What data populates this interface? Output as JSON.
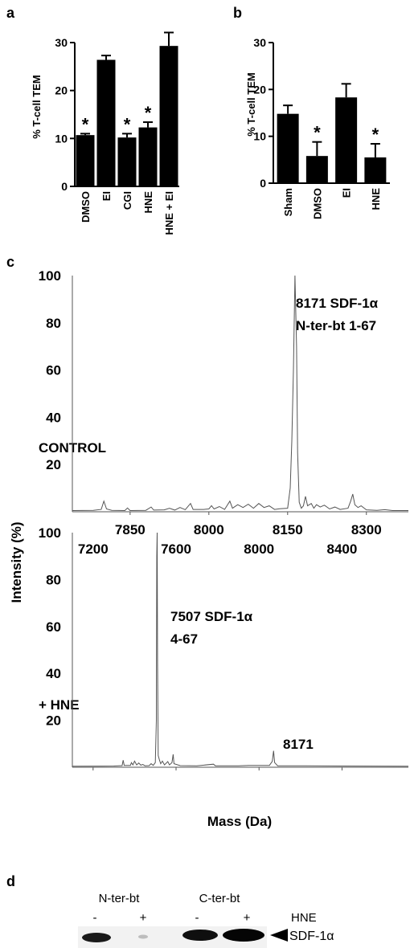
{
  "panel_labels": {
    "a": "a",
    "b": "b",
    "c": "c",
    "d": "d"
  },
  "chart_data": [
    {
      "panel": "a",
      "type": "bar",
      "ylabel": "% T-cell TEM",
      "ylim": [
        0,
        30
      ],
      "yticks": [
        0,
        10,
        20,
        30
      ],
      "categories": [
        "DMSO",
        "EI",
        "CGI",
        "HNE",
        "HNE + EI"
      ],
      "values": [
        10.7,
        26.4,
        10.2,
        12.3,
        29.3
      ],
      "errors": [
        0.3,
        0.9,
        0.8,
        1.1,
        2.8
      ],
      "significance": [
        "*",
        "",
        "*",
        "*",
        ""
      ]
    },
    {
      "panel": "b",
      "type": "bar",
      "ylabel": "% T-cell TEM",
      "ylim": [
        0,
        30
      ],
      "yticks": [
        0,
        10,
        20,
        30
      ],
      "categories": [
        "Sham",
        "DMSO",
        "EI",
        "HNE"
      ],
      "values": [
        14.8,
        5.8,
        18.3,
        5.5
      ],
      "errors": [
        1.8,
        3.0,
        2.9,
        2.9
      ],
      "significance": [
        "",
        "*",
        "",
        "*"
      ]
    },
    {
      "panel": "c-top",
      "type": "line",
      "label": "CONTROL",
      "xlim": [
        7740,
        8380
      ],
      "xticks": [
        7850,
        8000,
        8150,
        8300
      ],
      "ylim": [
        0,
        100
      ],
      "yticks": [
        20,
        40,
        60,
        80,
        100
      ],
      "peak_annotation": [
        "8171 SDF-1α",
        "N-ter-bt 1-67"
      ],
      "points": [
        [
          7740,
          0.5
        ],
        [
          7780,
          0.6
        ],
        [
          7795,
          1.0
        ],
        [
          7800,
          4.5
        ],
        [
          7805,
          1.2
        ],
        [
          7815,
          0.6
        ],
        [
          7840,
          0.5
        ],
        [
          7845,
          1.6
        ],
        [
          7850,
          0.5
        ],
        [
          7880,
          0.6
        ],
        [
          7890,
          2.0
        ],
        [
          7895,
          0.7
        ],
        [
          7915,
          0.8
        ],
        [
          7925,
          1.5
        ],
        [
          7935,
          0.7
        ],
        [
          7945,
          1.8
        ],
        [
          7955,
          0.9
        ],
        [
          7965,
          3.5
        ],
        [
          7970,
          1.0
        ],
        [
          7990,
          1.0
        ],
        [
          8000,
          1.2
        ],
        [
          8005,
          2.6
        ],
        [
          8010,
          1.2
        ],
        [
          8020,
          2.2
        ],
        [
          8030,
          1.0
        ],
        [
          8040,
          4.5
        ],
        [
          8045,
          1.5
        ],
        [
          8055,
          3.0
        ],
        [
          8065,
          1.8
        ],
        [
          8075,
          3.2
        ],
        [
          8085,
          1.5
        ],
        [
          8095,
          3.5
        ],
        [
          8105,
          1.8
        ],
        [
          8115,
          2.5
        ],
        [
          8125,
          1.0
        ],
        [
          8135,
          1.3
        ],
        [
          8150,
          1.5
        ],
        [
          8155,
          10
        ],
        [
          8158,
          30
        ],
        [
          8161,
          60
        ],
        [
          8164,
          100
        ],
        [
          8167,
          70
        ],
        [
          8169,
          25
        ],
        [
          8172,
          4
        ],
        [
          8176,
          1.5
        ],
        [
          8180,
          2.5
        ],
        [
          8184,
          6.5
        ],
        [
          8188,
          2.5
        ],
        [
          8195,
          3.5
        ],
        [
          8200,
          1.5
        ],
        [
          8205,
          3.0
        ],
        [
          8212,
          2.0
        ],
        [
          8220,
          2.8
        ],
        [
          8230,
          1.2
        ],
        [
          8240,
          2.0
        ],
        [
          8250,
          1.0
        ],
        [
          8265,
          1.5
        ],
        [
          8270,
          4.5
        ],
        [
          8274,
          7.5
        ],
        [
          8278,
          3.0
        ],
        [
          8284,
          1.8
        ],
        [
          8290,
          2.5
        ],
        [
          8300,
          0.8
        ],
        [
          8320,
          0.6
        ],
        [
          8335,
          0.9
        ],
        [
          8350,
          0.5
        ],
        [
          8380,
          0.5
        ]
      ]
    },
    {
      "panel": "c-bottom",
      "type": "line",
      "label": "+ HNE",
      "xlim": [
        7100,
        8720
      ],
      "xticks": [
        7200,
        7600,
        8000,
        8400
      ],
      "ylim": [
        0,
        100
      ],
      "yticks": [
        20,
        40,
        60,
        80,
        100
      ],
      "xlabel": "Mass (Da)",
      "peak_annotation": [
        "7507 SDF-1α",
        "4-67"
      ],
      "minor_annotation": "8171",
      "points": [
        [
          7100,
          0.4
        ],
        [
          7300,
          0.5
        ],
        [
          7340,
          0.7
        ],
        [
          7345,
          3.0
        ],
        [
          7350,
          0.8
        ],
        [
          7380,
          0.8
        ],
        [
          7385,
          2.0
        ],
        [
          7392,
          1.0
        ],
        [
          7400,
          2.6
        ],
        [
          7410,
          1.0
        ],
        [
          7420,
          1.8
        ],
        [
          7430,
          0.9
        ],
        [
          7440,
          1.2
        ],
        [
          7450,
          0.6
        ],
        [
          7470,
          0.7
        ],
        [
          7480,
          1.5
        ],
        [
          7490,
          0.8
        ],
        [
          7500,
          2.0
        ],
        [
          7505,
          20
        ],
        [
          7507,
          90
        ],
        [
          7509,
          100
        ],
        [
          7511,
          45
        ],
        [
          7514,
          5
        ],
        [
          7520,
          3.0
        ],
        [
          7526,
          1.5
        ],
        [
          7534,
          2.6
        ],
        [
          7544,
          1.0
        ],
        [
          7560,
          2.4
        ],
        [
          7568,
          1.0
        ],
        [
          7580,
          2.0
        ],
        [
          7586,
          5.5
        ],
        [
          7590,
          1.5
        ],
        [
          7620,
          0.7
        ],
        [
          7700,
          0.6
        ],
        [
          7780,
          1.3
        ],
        [
          7790,
          0.6
        ],
        [
          7900,
          0.6
        ],
        [
          7950,
          0.8
        ],
        [
          8050,
          0.8
        ],
        [
          8064,
          2.5
        ],
        [
          8070,
          7.0
        ],
        [
          8075,
          2.0
        ],
        [
          8090,
          0.6
        ],
        [
          8200,
          0.6
        ],
        [
          8400,
          0.5
        ],
        [
          8720,
          0.4
        ]
      ]
    }
  ],
  "shared_ylabel": "Intensity (%)",
  "blot": {
    "group_labels": [
      "N-ter-bt",
      "C-ter-bt"
    ],
    "lane_signs": [
      "-",
      "+",
      "-",
      "+"
    ],
    "treatment_label": "HNE",
    "band_label": "SDF-1α"
  }
}
